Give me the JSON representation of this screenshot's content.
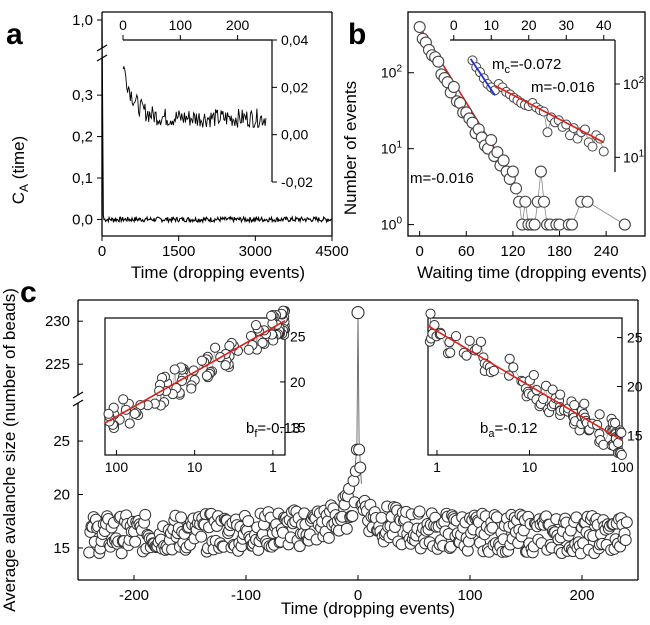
{
  "chart_data": [
    {
      "panel": "a",
      "type": "line",
      "xlabel": "Time (dropping events)",
      "ylabel": "C_A (time)",
      "x_ticks": [
        "0",
        "1500",
        "3000",
        "4500"
      ],
      "y_ticks": [
        "0,0",
        "0,1",
        "0,2",
        "0,3",
        "1,0"
      ],
      "xlim": [
        0,
        4500
      ],
      "ylim_lower": [
        -0.04,
        0.38
      ],
      "ylim_upper": [
        0.98,
        1.02
      ],
      "axis_break": true,
      "series": [
        {
          "x": [
            0,
            1,
            2,
            3,
            4,
            5,
            10,
            50,
            500,
            1500,
            3000,
            4500
          ],
          "y": [
            1.0,
            0.03,
            0.02,
            0.01,
            0.005,
            0.0,
            0.0,
            0.0,
            0.0,
            0.0,
            0.0,
            0.0
          ]
        }
      ],
      "inset": {
        "type": "line",
        "x_ticks": [
          "0",
          "100",
          "200"
        ],
        "y_ticks": [
          "0,04",
          "0,02",
          "0,00",
          "-0,02"
        ],
        "xlim": [
          0,
          260
        ],
        "ylim": [
          -0.02,
          0.04
        ],
        "curve": {
          "start": 0.03,
          "plateau": 0.007,
          "tau": 18,
          "noise": 0.004,
          "x_end": 250
        }
      }
    },
    {
      "panel": "b",
      "type": "scatter",
      "xlabel": "Waiting time (dropping events)",
      "ylabel": "Number of events",
      "yscale": "log",
      "x_ticks": [
        "0",
        "60",
        "120",
        "180",
        "240"
      ],
      "y_ticks": [
        "10^0",
        "10^1",
        "10^2"
      ],
      "xlim": [
        -15,
        290
      ],
      "ylim_log10": [
        -0.15,
        2.8
      ],
      "annotation_slope": "m=-0.016",
      "points": [
        [
          0,
          400
        ],
        [
          4,
          280
        ],
        [
          8,
          250
        ],
        [
          12,
          200
        ],
        [
          16,
          170
        ],
        [
          20,
          160
        ],
        [
          24,
          140
        ],
        [
          28,
          95
        ],
        [
          32,
          85
        ],
        [
          36,
          75
        ],
        [
          40,
          55
        ],
        [
          44,
          65
        ],
        [
          48,
          42
        ],
        [
          52,
          40
        ],
        [
          56,
          30
        ],
        [
          60,
          30
        ],
        [
          64,
          25
        ],
        [
          68,
          22
        ],
        [
          72,
          16
        ],
        [
          76,
          18
        ],
        [
          80,
          14
        ],
        [
          84,
          11
        ],
        [
          88,
          10
        ],
        [
          92,
          13
        ],
        [
          96,
          8
        ],
        [
          100,
          9
        ],
        [
          104,
          6
        ],
        [
          108,
          7
        ],
        [
          112,
          5
        ],
        [
          116,
          4
        ],
        [
          120,
          5
        ],
        [
          124,
          3
        ],
        [
          128,
          2
        ],
        [
          132,
          1
        ],
        [
          136,
          2
        ],
        [
          140,
          1
        ],
        [
          144,
          1
        ],
        [
          148,
          1
        ],
        [
          152,
          2
        ],
        [
          156,
          5
        ],
        [
          160,
          2
        ],
        [
          164,
          1
        ],
        [
          168,
          1
        ],
        [
          176,
          1
        ],
        [
          180,
          1
        ],
        [
          192,
          1
        ],
        [
          196,
          1
        ],
        [
          208,
          2
        ],
        [
          216,
          2
        ],
        [
          264,
          1
        ]
      ],
      "fit": {
        "x": [
          0,
          110
        ],
        "y": [
          400,
          6
        ]
      },
      "inset": {
        "type": "scatter",
        "yscale": "log",
        "x_ticks": [
          "0",
          "10",
          "20",
          "30",
          "40"
        ],
        "y_ticks": [
          "10^1",
          "10^2"
        ],
        "xlim": [
          -1,
          43
        ],
        "ylim_log10": [
          0.8,
          2.6
        ],
        "annotation_mc": "m",
        "annotation_mc_sub": "c",
        "annotation_mc_value": "=-0.072",
        "annotation_m": "m=-0.016",
        "points": [
          [
            5,
            210
          ],
          [
            6,
            170
          ],
          [
            7,
            145
          ],
          [
            8,
            120
          ],
          [
            9,
            100
          ],
          [
            10,
            90
          ],
          [
            11,
            82
          ],
          [
            12,
            100
          ],
          [
            13,
            90
          ],
          [
            14,
            78
          ],
          [
            15,
            72
          ],
          [
            16,
            65
          ],
          [
            17,
            60
          ],
          [
            18,
            55
          ],
          [
            19,
            52
          ],
          [
            20,
            50
          ],
          [
            21,
            55
          ],
          [
            22,
            48
          ],
          [
            23,
            44
          ],
          [
            24,
            42
          ],
          [
            25,
            22
          ],
          [
            26,
            35
          ],
          [
            27,
            30
          ],
          [
            28,
            32
          ],
          [
            29,
            26
          ],
          [
            30,
            28
          ],
          [
            31,
            20
          ],
          [
            32,
            25
          ],
          [
            33,
            18
          ],
          [
            34,
            22
          ],
          [
            35,
            24
          ],
          [
            36,
            16
          ],
          [
            37,
            14
          ],
          [
            38,
            20
          ],
          [
            39,
            18
          ],
          [
            40,
            12
          ]
        ],
        "fit_fast": {
          "x": [
            4.5,
            11
          ],
          "y": [
            220,
            70
          ]
        },
        "fit_slow": {
          "x": [
            11,
            40
          ],
          "y": [
            95,
            16
          ]
        }
      }
    },
    {
      "panel": "c",
      "type": "scatter",
      "xlabel": "Time (dropping events)",
      "ylabel": "Average avalanche size (number of beads)",
      "x_ticks": [
        "-200",
        "-100",
        "0",
        "100",
        "200"
      ],
      "y_ticks": [
        "15",
        "20",
        "25"
      ],
      "y_ticks_upper": [
        "225",
        "230"
      ],
      "xlim": [
        -250,
        250
      ],
      "ylim_lower": [
        12,
        28
      ],
      "ylim_upper": [
        222,
        232
      ],
      "axis_break": true,
      "peak": {
        "x": 0,
        "y": 231
      },
      "baseline": 15.8,
      "insets": [
        {
          "name": "foreshock",
          "xscale": "log-reversed",
          "annotation": "b",
          "annotation_sub": "f",
          "annotation_value": "=-0.13",
          "x_ticks": [
            "100",
            "10",
            "1"
          ],
          "y_ticks": [
            "25",
            "20",
            "15"
          ],
          "xlim": [
            140,
            0.7
          ],
          "ylim": [
            12,
            27
          ],
          "fit": {
            "x": [
              140,
              0.7
            ],
            "y": [
              15.5,
              26.7
            ]
          }
        },
        {
          "name": "aftershock",
          "xscale": "log",
          "annotation": "b",
          "annotation_sub": "a",
          "annotation_value": "=-0.12",
          "x_ticks": [
            "1",
            "10",
            "100"
          ],
          "y_ticks": [
            "25",
            "20",
            "15"
          ],
          "xlim": [
            0.8,
            100
          ],
          "ylim": [
            13,
            27
          ],
          "fit": {
            "x": [
              0.8,
              100
            ],
            "y": [
              26.2,
              14.5
            ]
          }
        }
      ]
    }
  ],
  "labels": {
    "panel_a": "a",
    "panel_b": "b",
    "panel_c": "c"
  }
}
